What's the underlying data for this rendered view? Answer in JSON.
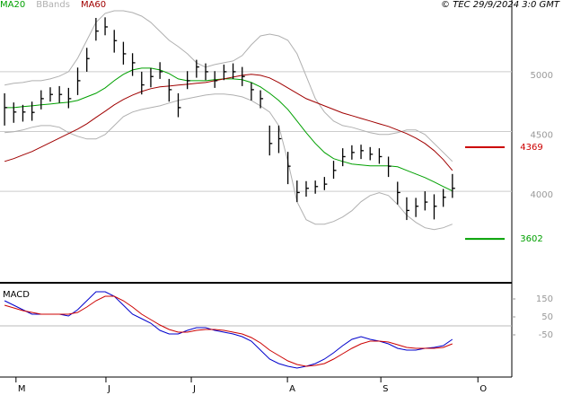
{
  "watermark": "© TEC 29/9/2024 3:0 GMT",
  "chart_data": [
    {
      "type": "ohlc",
      "color": "#000000",
      "high": [
        4820,
        4743,
        4723,
        4750,
        4845,
        4870,
        4880,
        4865,
        5035,
        5200,
        5450,
        5455,
        5350,
        5250,
        5155,
        5000,
        5030,
        5080,
        4940,
        4820,
        5005,
        5100,
        5070,
        5005,
        5060,
        5070,
        5040,
        4910,
        4845,
        4550,
        4550,
        4330,
        4090,
        4085,
        4090,
        4120,
        4255,
        4360,
        4385,
        4390,
        4370,
        4360,
        4290,
        4080,
        3950,
        3945,
        4000,
        3975,
        4020,
        4145
      ],
      "low": [
        4550,
        4573,
        4583,
        4590,
        4685,
        4750,
        4740,
        4695,
        4805,
        5000,
        5260,
        5305,
        5160,
        5060,
        4965,
        4810,
        4870,
        4940,
        4750,
        4620,
        4855,
        4950,
        4930,
        4865,
        4930,
        4940,
        4880,
        4760,
        4695,
        4300,
        4320,
        4060,
        3910,
        3955,
        3980,
        4010,
        4105,
        4210,
        4265,
        4270,
        4260,
        4230,
        4120,
        3890,
        3760,
        3785,
        3840,
        3765,
        3870,
        3945
      ],
      "close": [
        4700,
        4663,
        4663,
        4660,
        4775,
        4810,
        4810,
        4775,
        4925,
        5110,
        5340,
        5375,
        5260,
        5150,
        5075,
        4890,
        4960,
        5000,
        4850,
        4700,
        4925,
        5040,
        5000,
        4925,
        5000,
        5000,
        4960,
        4850,
        4775,
        4400,
        4440,
        4210,
        3990,
        4025,
        4040,
        4060,
        4175,
        4290,
        4325,
        4340,
        4310,
        4290,
        4210,
        3990,
        3840,
        3875,
        3910,
        3875,
        3950,
        4025
      ],
      "series": [
        {
          "name": "MA20",
          "color": "#00a000",
          "values": [
            4700,
            4700,
            4708,
            4715,
            4723,
            4730,
            4738,
            4745,
            4760,
            4790,
            4820,
            4865,
            4925,
            4978,
            5015,
            5030,
            5030,
            5015,
            4985,
            4940,
            4925,
            4925,
            4925,
            4933,
            4940,
            4940,
            4933,
            4910,
            4873,
            4820,
            4760,
            4685,
            4588,
            4490,
            4400,
            4325,
            4273,
            4250,
            4228,
            4220,
            4213,
            4213,
            4213,
            4205,
            4175,
            4145,
            4115,
            4078,
            4040,
            4003
          ]
        },
        {
          "name": "BBands",
          "color": "#b0b0b0",
          "values": [
            4888,
            4903,
            4910,
            4925,
            4925,
            4940,
            4963,
            5000,
            5113,
            5263,
            5413,
            5488,
            5510,
            5510,
            5495,
            5465,
            5413,
            5338,
            5263,
            5210,
            5150,
            5075,
            5038,
            5060,
            5075,
            5090,
            5135,
            5225,
            5300,
            5315,
            5300,
            5263,
            5150,
            4963,
            4775,
            4663,
            4588,
            4550,
            4535,
            4513,
            4490,
            4475,
            4475,
            4490,
            4513,
            4513,
            4475,
            4400,
            4325,
            4250
          ],
          "lower": [
            4490,
            4498,
            4513,
            4535,
            4550,
            4550,
            4535,
            4490,
            4460,
            4438,
            4438,
            4475,
            4550,
            4625,
            4663,
            4685,
            4700,
            4715,
            4738,
            4760,
            4775,
            4790,
            4805,
            4813,
            4813,
            4805,
            4790,
            4760,
            4715,
            4663,
            4550,
            4250,
            3913,
            3763,
            3725,
            3725,
            3748,
            3785,
            3838,
            3913,
            3965,
            3988,
            3965,
            3890,
            3800,
            3740,
            3695,
            3680,
            3695,
            3725
          ]
        },
        {
          "name": "MA60",
          "color": "#a00000",
          "values": [
            4250,
            4273,
            4303,
            4333,
            4370,
            4408,
            4445,
            4483,
            4520,
            4565,
            4618,
            4670,
            4723,
            4768,
            4805,
            4835,
            4858,
            4873,
            4880,
            4888,
            4895,
            4903,
            4910,
            4925,
            4940,
            4955,
            4970,
            4978,
            4970,
            4948,
            4910,
            4865,
            4820,
            4775,
            4745,
            4715,
            4685,
            4655,
            4633,
            4610,
            4588,
            4565,
            4543,
            4513,
            4483,
            4445,
            4400,
            4340,
            4265,
            4175
          ]
        }
      ],
      "levels": [
        {
          "value": 4369,
          "color": "#cc0000"
        },
        {
          "value": 3602,
          "color": "#00a000"
        }
      ],
      "xlim": [
        -0.5,
        55.5
      ],
      "ylim": [
        3250,
        5600
      ],
      "yticks": [
        4000,
        4500,
        5000
      ],
      "grid": true
    },
    {
      "type": "line",
      "title": "MACD",
      "series": [
        {
          "color": "#0000cc",
          "values": [
            140,
            115,
            90,
            65,
            65,
            65,
            65,
            55,
            90,
            140,
            190,
            190,
            165,
            115,
            65,
            40,
            15,
            -25,
            -45,
            -45,
            -25,
            -10,
            -10,
            -25,
            -35,
            -45,
            -60,
            -85,
            -135,
            -185,
            -210,
            -225,
            -235,
            -225,
            -210,
            -185,
            -150,
            -110,
            -75,
            -60,
            -75,
            -85,
            -100,
            -125,
            -135,
            -135,
            -125,
            -120,
            -110,
            -75
          ]
        },
        {
          "color": "#cc0000",
          "values": [
            115,
            100,
            85,
            75,
            65,
            65,
            65,
            65,
            75,
            105,
            140,
            165,
            165,
            140,
            105,
            65,
            35,
            5,
            -20,
            -35,
            -35,
            -25,
            -20,
            -20,
            -25,
            -35,
            -45,
            -65,
            -95,
            -135,
            -165,
            -195,
            -215,
            -225,
            -220,
            -210,
            -185,
            -155,
            -125,
            -100,
            -85,
            -85,
            -90,
            -105,
            -120,
            -125,
            -125,
            -125,
            -120,
            -100
          ]
        }
      ],
      "xlim": [
        -0.5,
        55.5
      ],
      "xticks": [
        {
          "value": 1.25,
          "label": "M"
        },
        {
          "value": 11.09,
          "label": "J"
        },
        {
          "value": 20.43,
          "label": "J"
        },
        {
          "value": 30.95,
          "label": "A"
        },
        {
          "value": 41.17,
          "label": "S"
        },
        {
          "value": 51.79,
          "label": "O"
        }
      ],
      "ylim": [
        -285,
        240
      ],
      "yticks": [
        150,
        50,
        -50
      ]
    }
  ]
}
